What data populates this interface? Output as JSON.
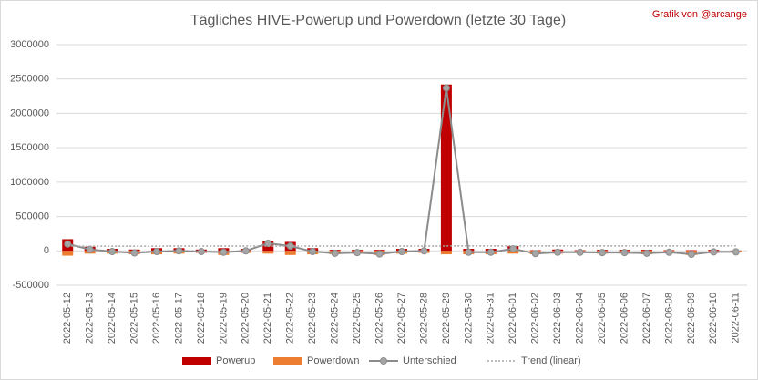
{
  "chart_data": {
    "type": "bar",
    "title": "Tägliches HIVE-Powerup und Powerdown (letzte 30 Tage)",
    "annotation": "Grafik von @arcange",
    "categories": [
      "2022-05-12",
      "2022-05-13",
      "2022-05-14",
      "2022-05-15",
      "2022-05-16",
      "2022-05-17",
      "2022-05-18",
      "2022-05-19",
      "2022-05-20",
      "2022-05-21",
      "2022-05-22",
      "2022-05-23",
      "2022-05-24",
      "2022-05-25",
      "2022-05-26",
      "2022-05-27",
      "2022-05-28",
      "2022-05-29",
      "2022-05-30",
      "2022-05-31",
      "2022-06-01",
      "2022-06-02",
      "2022-06-03",
      "2022-06-04",
      "2022-06-05",
      "2022-06-06",
      "2022-06-07",
      "2022-06-08",
      "2022-06-09",
      "2022-06-10",
      "2022-06-11"
    ],
    "series": [
      {
        "name": "Powerup",
        "color": "#c00000",
        "kind": "bar",
        "values": [
          170000,
          60000,
          30000,
          20000,
          40000,
          40000,
          20000,
          40000,
          30000,
          150000,
          130000,
          40000,
          15000,
          15000,
          15000,
          30000,
          30000,
          2420000,
          30000,
          30000,
          70000,
          10000,
          20000,
          10000,
          15000,
          15000,
          15000,
          10000,
          10000,
          15000,
          5000
        ]
      },
      {
        "name": "Powerdown",
        "color": "#ed7d31",
        "kind": "bar",
        "values": [
          -70000,
          -40000,
          -40000,
          -50000,
          -50000,
          -40000,
          -30000,
          -60000,
          -30000,
          -40000,
          -60000,
          -50000,
          -50000,
          -40000,
          -60000,
          -40000,
          -30000,
          -50000,
          -50000,
          -50000,
          -40000,
          -50000,
          -40000,
          -30000,
          -40000,
          -40000,
          -50000,
          -30000,
          -60000,
          -30000,
          -20000
        ]
      },
      {
        "name": "Unterschied",
        "color": "#8c8c8c",
        "kind": "line",
        "values": [
          100000,
          20000,
          -10000,
          -30000,
          -10000,
          0,
          -10000,
          -20000,
          0,
          110000,
          70000,
          -10000,
          -35000,
          -25000,
          -45000,
          -10000,
          0,
          2370000,
          -20000,
          -20000,
          30000,
          -40000,
          -20000,
          -20000,
          -25000,
          -25000,
          -35000,
          -20000,
          -50000,
          -15000,
          -15000
        ]
      },
      {
        "name": "Trend (linear)",
        "color": "#a6a6a6",
        "kind": "trend"
      }
    ],
    "ylim": [
      -500000,
      3000000
    ],
    "yticks": [
      -500000,
      0,
      500000,
      1000000,
      1500000,
      2000000,
      2500000,
      3000000
    ],
    "grid": true
  }
}
